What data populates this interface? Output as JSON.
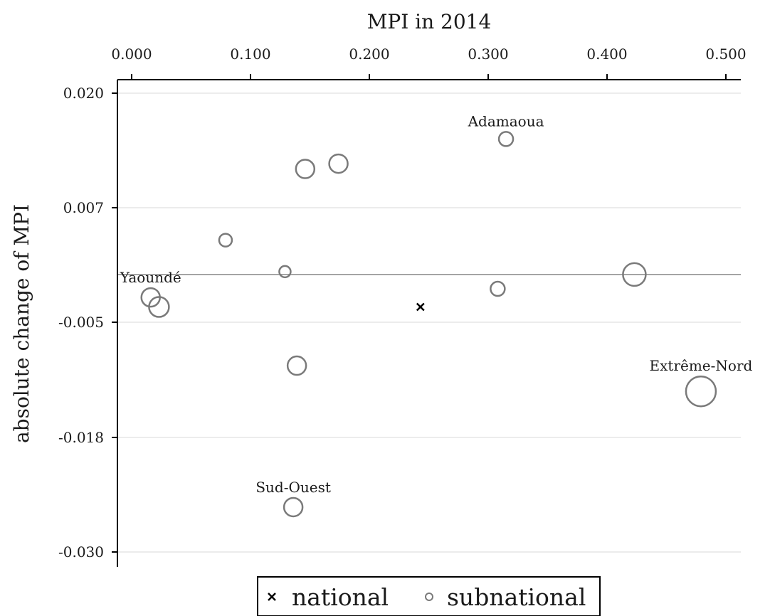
{
  "chart_data": {
    "type": "scatter",
    "title": "",
    "xlabel": "MPI in 2014",
    "ylabel": "absolute change of MPI",
    "x_axis_position": "top",
    "xlim": [
      0.0,
      0.5
    ],
    "ylim": [
      -0.03,
      0.02
    ],
    "x_ticks": [
      0.0,
      0.1,
      0.2,
      0.3,
      0.4,
      0.5
    ],
    "x_tick_labels": [
      "0.000",
      "0.100",
      "0.200",
      "0.300",
      "0.400",
      "0.500"
    ],
    "y_ticks": [
      0.02,
      0.007,
      -0.005,
      -0.018,
      -0.03
    ],
    "y_tick_labels": [
      "0.020",
      "0.007",
      "-0.005",
      "-0.018",
      "-0.030"
    ],
    "grid": "horizontal",
    "reference_line_y": 0.0,
    "legend_position": "bottom",
    "series": [
      {
        "name": "national",
        "marker": "x",
        "points": [
          {
            "x": 0.243,
            "y": -0.0034
          }
        ]
      },
      {
        "name": "subnational",
        "marker": "hollow-circle",
        "marker_size_encodes_population": true,
        "points": [
          {
            "x": 0.315,
            "y": 0.0148,
            "label": "Adamaoua",
            "size": 1.0
          },
          {
            "x": 0.146,
            "y": 0.0114,
            "size": 1.3
          },
          {
            "x": 0.174,
            "y": 0.012,
            "size": 1.3
          },
          {
            "x": 0.079,
            "y": 0.0036,
            "size": 0.9
          },
          {
            "x": 0.129,
            "y": 0.0003,
            "size": 0.8
          },
          {
            "x": 0.423,
            "y": 0.0,
            "size": 1.6
          },
          {
            "x": 0.308,
            "y": -0.0015,
            "size": 1.0
          },
          {
            "x": 0.016,
            "y": -0.0024,
            "label": "Yaoundé",
            "size": 1.3
          },
          {
            "x": 0.023,
            "y": -0.0034,
            "size": 1.4
          },
          {
            "x": 0.139,
            "y": -0.0099,
            "size": 1.3
          },
          {
            "x": 0.479,
            "y": -0.0128,
            "label": "Extrême-Nord",
            "size": 2.1
          },
          {
            "x": 0.136,
            "y": -0.0253,
            "label": "Sud-Ouest",
            "size": 1.3
          }
        ]
      }
    ],
    "legend": [
      "national",
      "subnational"
    ],
    "colors": {
      "subnational": "#7a7a7a",
      "national": "#000000",
      "grid": "#ececec",
      "refline": "#8a8a8a"
    }
  }
}
